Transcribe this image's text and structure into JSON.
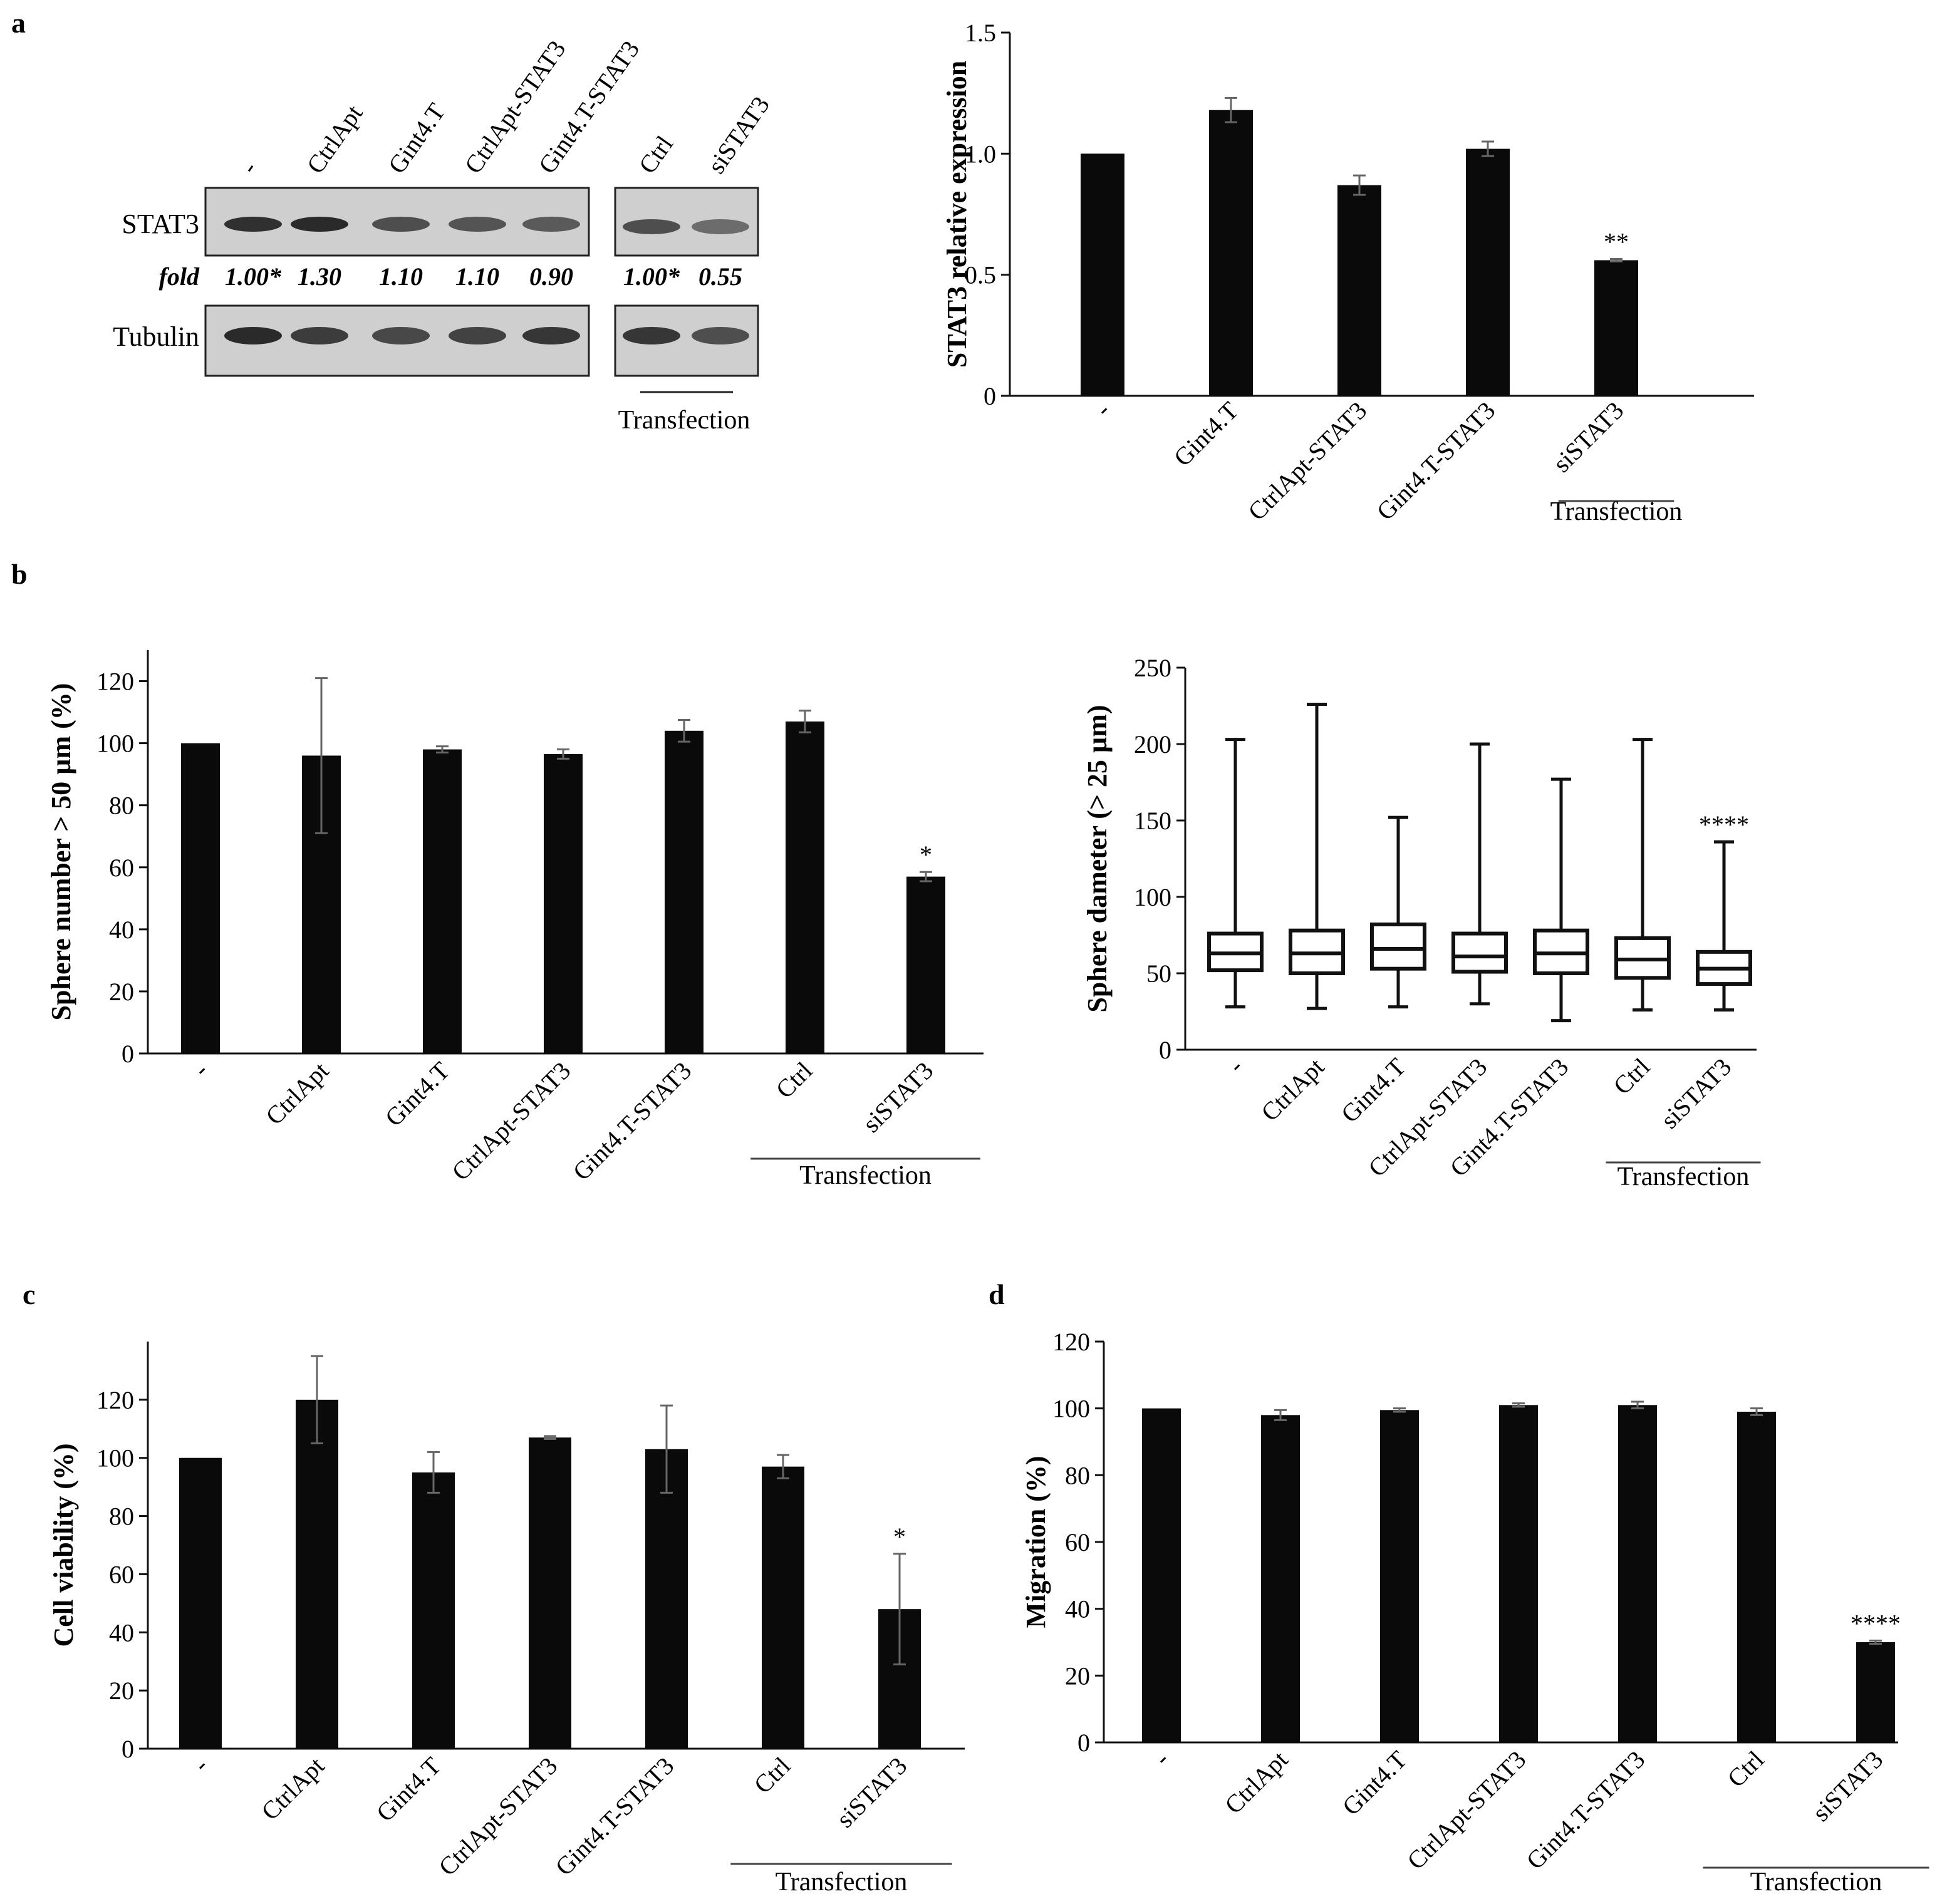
{
  "panel_labels": [
    "a",
    "b",
    "c",
    "d"
  ],
  "blot": {
    "lanes_left": [
      "-",
      "CtrlApt",
      "Gint4.T",
      "CtrlApt-STAT3",
      "Gint4.T-STAT3"
    ],
    "lanes_right": [
      "Ctrl",
      "siSTAT3"
    ],
    "row1_label": "STAT3",
    "row2_label": "Tubulin",
    "fold_label": "fold",
    "fold_left": [
      "1.00*",
      "1.30",
      "1.10",
      "1.10",
      "0.90"
    ],
    "fold_right": [
      "1.00*",
      "0.55"
    ],
    "band1_intensity_left": [
      0.85,
      0.9,
      0.6,
      0.55,
      0.5
    ],
    "band1_intensity_right": [
      0.6,
      0.35
    ],
    "band2_intensity_left": [
      0.9,
      0.75,
      0.65,
      0.7,
      0.8
    ],
    "band2_intensity_right": [
      0.8,
      0.6
    ],
    "transfection": "Transfection"
  },
  "chart_data": [
    {
      "id": "a",
      "type": "bar",
      "categories": [
        "-",
        "Gint4.T",
        "CtrlApt-STAT3",
        "Gint4.T-STAT3",
        "siSTAT3"
      ],
      "values": [
        1.0,
        1.18,
        0.87,
        1.02,
        0.56
      ],
      "errors": [
        0.0,
        0.05,
        0.04,
        0.03,
        0.005
      ],
      "ylabel": "STAT3 relative expression",
      "ylim": [
        0,
        1.5
      ],
      "yticks": [
        0,
        0.5,
        1.0,
        1.5
      ],
      "ytick_labels": [
        "0",
        "0.5",
        "1.0",
        "1.5"
      ],
      "annotations": [
        {
          "category": "siSTAT3",
          "text": "**"
        }
      ],
      "group_label": {
        "text": "Transfection",
        "from": 4,
        "to": 4
      }
    },
    {
      "id": "b_left",
      "type": "bar",
      "categories": [
        "-",
        "CtrlApt",
        "Gint4.T",
        "CtrlApt-STAT3",
        "Gint4.T-STAT3",
        "Ctrl",
        "siSTAT3"
      ],
      "values": [
        100,
        96,
        98,
        96.5,
        104,
        107,
        57
      ],
      "errors": [
        0,
        25,
        1,
        1.5,
        3.5,
        3.5,
        1.5
      ],
      "ylabel": "Sphere number > 50 µm (%)",
      "ylim": [
        0,
        130
      ],
      "yticks": [
        0,
        20,
        40,
        60,
        80,
        100,
        120
      ],
      "annotations": [
        {
          "category": "siSTAT3",
          "text": "*"
        }
      ],
      "group_label": {
        "text": "Transfection",
        "from": 5,
        "to": 6
      }
    },
    {
      "id": "b_right",
      "type": "box",
      "categories": [
        "-",
        "CtrlApt",
        "Gint4.T",
        "CtrlApt-STAT3",
        "Gint4.T-STAT3",
        "Ctrl",
        "siSTAT3"
      ],
      "boxes": [
        {
          "min": 28,
          "q1": 52,
          "median": 63,
          "q3": 76,
          "max": 203
        },
        {
          "min": 27,
          "q1": 50,
          "median": 63,
          "q3": 78,
          "max": 226
        },
        {
          "min": 28,
          "q1": 53,
          "median": 66,
          "q3": 82,
          "max": 152
        },
        {
          "min": 30,
          "q1": 51,
          "median": 61,
          "q3": 76,
          "max": 200
        },
        {
          "min": 19,
          "q1": 50,
          "median": 63,
          "q3": 78,
          "max": 177
        },
        {
          "min": 26,
          "q1": 47,
          "median": 59,
          "q3": 73,
          "max": 203
        },
        {
          "min": 26,
          "q1": 43,
          "median": 53,
          "q3": 64,
          "max": 136
        }
      ],
      "ylabel": "Sphere dameter (> 25 µm)",
      "ylim": [
        0,
        250
      ],
      "yticks": [
        0,
        50,
        100,
        150,
        200,
        250
      ],
      "annotations": [
        {
          "category": "siSTAT3",
          "text": "****"
        }
      ],
      "group_label": {
        "text": "Transfection",
        "from": 5,
        "to": 6
      }
    },
    {
      "id": "c",
      "type": "bar",
      "categories": [
        "-",
        "CtrlApt",
        "Gint4.T",
        "CtrlApt-STAT3",
        "Gint4.T-STAT3",
        "Ctrl",
        "siSTAT3"
      ],
      "values": [
        100,
        120,
        95,
        107,
        103,
        97,
        48
      ],
      "errors": [
        0,
        15,
        7,
        0.5,
        15,
        4,
        19
      ],
      "ylabel": "Cell viability (%)",
      "ylim": [
        0,
        140
      ],
      "yticks": [
        0,
        20,
        40,
        60,
        80,
        100,
        120
      ],
      "annotations": [
        {
          "category": "siSTAT3",
          "text": "*"
        }
      ],
      "group_label": {
        "text": "Transfection",
        "from": 5,
        "to": 6
      }
    },
    {
      "id": "d",
      "type": "bar",
      "categories": [
        "-",
        "CtrlApt",
        "Gint4.T",
        "CtrlApt-STAT3",
        "Gint4.T-STAT3",
        "Ctrl",
        "siSTAT3"
      ],
      "values": [
        100,
        98,
        99.5,
        101,
        101,
        99,
        30
      ],
      "errors": [
        0,
        1.5,
        0.5,
        0.5,
        1,
        1,
        0.5
      ],
      "ylabel": "Migration (%)",
      "ylim": [
        0,
        120
      ],
      "yticks": [
        0,
        20,
        40,
        60,
        80,
        100,
        120
      ],
      "annotations": [
        {
          "category": "siSTAT3",
          "text": "****"
        }
      ],
      "group_label": {
        "text": "Transfection",
        "from": 5,
        "to": 6
      }
    }
  ]
}
